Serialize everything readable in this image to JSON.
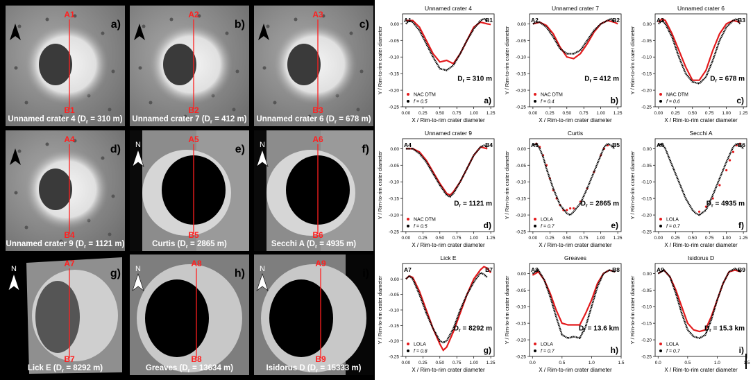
{
  "image_panels": [
    {
      "letter": "a)",
      "top": "A1",
      "bottom": "B1",
      "caption": "Unnamed crater 4 (D",
      "caption_sub": "r",
      "caption_tail": " = 310 m)",
      "style": "small",
      "north": "▲"
    },
    {
      "letter": "b)",
      "top": "A2",
      "bottom": "B2",
      "caption": "Unnamed crater 7 (D",
      "caption_sub": "r",
      "caption_tail": " = 412 m)",
      "style": "small",
      "north": "▲"
    },
    {
      "letter": "c)",
      "top": "A3",
      "bottom": "B3",
      "caption": "Unnamed crater 6 (D",
      "caption_sub": "r",
      "caption_tail": " = 678 m)",
      "style": "small",
      "north": "▲"
    },
    {
      "letter": "d)",
      "top": "A4",
      "bottom": "B4",
      "caption": "Unnamed crater 9 (D",
      "caption_sub": "r",
      "caption_tail": " = 1121 m)",
      "style": "small",
      "north": "▲"
    },
    {
      "letter": "e)",
      "top": "A5",
      "bottom": "B5",
      "caption": "Curtis (D",
      "caption_sub": "r",
      "caption_tail": " = 2865 m)",
      "style": "large",
      "north": "N"
    },
    {
      "letter": "f)",
      "top": "A6",
      "bottom": "B6",
      "caption": "Secchi A (D",
      "caption_sub": "r",
      "caption_tail": " = 4935 m)",
      "style": "large",
      "north": "N"
    },
    {
      "letter": "g)",
      "top": "A7",
      "bottom": "B7",
      "caption": "Lick E (D",
      "caption_sub": "r",
      "caption_tail": " = 8292 m)",
      "style": "lick",
      "north": "N"
    },
    {
      "letter": "h)",
      "top": "A8",
      "bottom": "B8",
      "caption": "Greaves (D",
      "caption_sub": "r",
      "caption_tail": " = 13634 m)",
      "style": "huge",
      "north": "N"
    },
    {
      "letter": "i)",
      "top": "A9",
      "bottom": "B9",
      "caption": "Isidorus D (D",
      "caption_sub": "r",
      "caption_tail": " = 15333 m)",
      "style": "huge",
      "north": "N"
    }
  ],
  "xlabel": "X / Rim-to-rim crater diameter",
  "ylabel": "Y / Rim-to-rim crater diameter",
  "colors": {
    "measured": "#e31a1c",
    "model": "#000000",
    "profile_line": "#ff2020",
    "label": "#ff2020"
  },
  "chart_data": [
    {
      "type": "line",
      "title": "Unnamed crater 4",
      "letter": "a)",
      "left_label": "A1",
      "right_label": "B1",
      "dr_text": "D",
      "dr_sub": "r",
      "dr_value": " = 310 m",
      "legend": [
        "NAC DTM",
        "f = 0.5"
      ],
      "xlim": [
        -0.05,
        1.3
      ],
      "xticks": [
        "0.00",
        "0.25",
        "0.50",
        "0.75",
        "1.00",
        "1.25"
      ],
      "ylim": [
        -0.25,
        0.03
      ],
      "yticks": [
        "0.00",
        "-0.05",
        "-0.10",
        "-0.15",
        "-0.20",
        "-0.25"
      ],
      "series": [
        {
          "name": "NAC DTM",
          "x": [
            0,
            0.1,
            0.2,
            0.3,
            0.4,
            0.5,
            0.6,
            0.7,
            0.8,
            0.9,
            1.0,
            1.1,
            1.2,
            1.25
          ],
          "y": [
            0.01,
            0.01,
            -0.01,
            -0.05,
            -0.09,
            -0.115,
            -0.11,
            -0.12,
            -0.09,
            -0.05,
            -0.01,
            0.005,
            0.0,
            -0.002
          ]
        },
        {
          "name": "f = 0.5",
          "x": [
            0,
            0.05,
            0.1,
            0.2,
            0.3,
            0.4,
            0.5,
            0.6,
            0.7,
            0.8,
            0.9,
            1.0,
            1.1,
            1.15,
            1.2
          ],
          "y": [
            0.0,
            0.01,
            0.005,
            -0.02,
            -0.06,
            -0.1,
            -0.135,
            -0.14,
            -0.125,
            -0.09,
            -0.05,
            -0.015,
            0.01,
            0.015,
            0.01
          ]
        }
      ]
    },
    {
      "type": "line",
      "title": "Unnamed crater 7",
      "letter": "b)",
      "left_label": "A2",
      "right_label": "B2",
      "dr_text": "D",
      "dr_sub": "r",
      "dr_value": " = 412 m",
      "legend": [
        "NAC DTM",
        "f = 0.4"
      ],
      "xlim": [
        -0.05,
        1.3
      ],
      "xticks": [
        "0.00",
        "0.25",
        "0.50",
        "0.75",
        "1.00",
        "1.25"
      ],
      "ylim": [
        -0.25,
        0.03
      ],
      "yticks": [
        "0.00",
        "-0.05",
        "-0.10",
        "-0.15",
        "-0.20",
        "-0.25"
      ],
      "series": [
        {
          "name": "NAC DTM",
          "x": [
            0,
            0.1,
            0.2,
            0.3,
            0.4,
            0.5,
            0.6,
            0.7,
            0.8,
            0.9,
            1.0,
            1.1,
            1.2,
            1.25
          ],
          "y": [
            0.0,
            0.005,
            -0.005,
            -0.03,
            -0.07,
            -0.1,
            -0.105,
            -0.09,
            -0.06,
            -0.025,
            0.0,
            0.01,
            0.005,
            0.0
          ]
        },
        {
          "name": "f = 0.4",
          "x": [
            0,
            0.05,
            0.1,
            0.2,
            0.3,
            0.4,
            0.5,
            0.6,
            0.7,
            0.8,
            0.9,
            1.0,
            1.1,
            1.15,
            1.2
          ],
          "y": [
            0.0,
            0.005,
            0.005,
            -0.01,
            -0.04,
            -0.075,
            -0.09,
            -0.09,
            -0.08,
            -0.05,
            -0.02,
            0.0,
            0.01,
            0.015,
            0.005
          ]
        }
      ]
    },
    {
      "type": "line",
      "title": "Unnamed crater 6",
      "letter": "c)",
      "left_label": "A3",
      "right_label": "B3",
      "dr_text": "D",
      "dr_sub": "r",
      "dr_value": " = 678 m",
      "legend": [
        "NAC DTM",
        "f = 0.6"
      ],
      "xlim": [
        -0.05,
        1.3
      ],
      "xticks": [
        "0.00",
        "0.25",
        "0.50",
        "0.75",
        "1.00",
        "1.25"
      ],
      "ylim": [
        -0.25,
        0.03
      ],
      "yticks": [
        "0.00",
        "-0.05",
        "-0.10",
        "-0.15",
        "-0.20",
        "-0.25"
      ],
      "series": [
        {
          "name": "NAC DTM",
          "x": [
            0,
            0.05,
            0.1,
            0.2,
            0.3,
            0.4,
            0.5,
            0.6,
            0.7,
            0.8,
            0.9,
            1.0,
            1.1,
            1.2
          ],
          "y": [
            0.005,
            0.015,
            0.01,
            -0.03,
            -0.08,
            -0.13,
            -0.17,
            -0.17,
            -0.14,
            -0.08,
            -0.03,
            0.0,
            0.01,
            0.005
          ]
        },
        {
          "name": "f = 0.6",
          "x": [
            0,
            0.05,
            0.1,
            0.2,
            0.3,
            0.4,
            0.5,
            0.6,
            0.7,
            0.8,
            0.9,
            1.0,
            1.1,
            1.15,
            1.2
          ],
          "y": [
            0.0,
            0.01,
            0.0,
            -0.04,
            -0.1,
            -0.15,
            -0.175,
            -0.18,
            -0.16,
            -0.11,
            -0.05,
            -0.01,
            0.01,
            0.015,
            0.0
          ]
        }
      ]
    },
    {
      "type": "line",
      "title": "Unnamed crater 9",
      "letter": "d)",
      "left_label": "A4",
      "right_label": "B4",
      "dr_text": "D",
      "dr_sub": "r",
      "dr_value": " = 1121 m",
      "legend": [
        "NAC DTM",
        "f = 0.5"
      ],
      "xlim": [
        -0.05,
        1.3
      ],
      "xticks": [
        "0.00",
        "0.25",
        "0.50",
        "0.75",
        "1.00",
        "1.25"
      ],
      "ylim": [
        -0.25,
        0.03
      ],
      "yticks": [
        "0.00",
        "-0.05",
        "-0.10",
        "-0.15",
        "-0.20",
        "-0.25"
      ],
      "series": [
        {
          "name": "NAC DTM",
          "x": [
            0,
            0.1,
            0.2,
            0.3,
            0.4,
            0.5,
            0.6,
            0.65,
            0.7,
            0.8,
            0.9,
            1.0,
            1.1,
            1.2
          ],
          "y": [
            0.0,
            0.0,
            -0.01,
            -0.035,
            -0.07,
            -0.105,
            -0.135,
            -0.14,
            -0.13,
            -0.1,
            -0.06,
            -0.02,
            0.005,
            0.0
          ]
        },
        {
          "name": "f = 0.5",
          "x": [
            0,
            0.1,
            0.2,
            0.3,
            0.4,
            0.5,
            0.6,
            0.65,
            0.7,
            0.8,
            0.9,
            1.0,
            1.1,
            1.15,
            1.2
          ],
          "y": [
            0.0,
            0.0,
            -0.015,
            -0.04,
            -0.075,
            -0.11,
            -0.14,
            -0.145,
            -0.135,
            -0.1,
            -0.06,
            -0.02,
            0.005,
            0.01,
            0.005
          ]
        }
      ]
    },
    {
      "type": "line",
      "title": "Curtis",
      "letter": "e)",
      "left_label": "A5",
      "right_label": "B5",
      "dr_text": "D",
      "dr_sub": "r",
      "dr_value": " = 2865 m",
      "legend": [
        "LOLA",
        "f = 0.7"
      ],
      "xlim": [
        -0.05,
        1.3
      ],
      "xticks": [
        "0.00",
        "0.25",
        "0.50",
        "0.75",
        "1.00",
        "1.25"
      ],
      "ylim": [
        -0.25,
        0.03
      ],
      "yticks": [
        "0.00",
        "-0.05",
        "-0.10",
        "-0.15",
        "-0.20",
        "-0.25"
      ],
      "series": [
        {
          "name": "LOLA",
          "x": [
            0.05,
            0.1,
            0.15,
            0.2,
            0.25,
            0.3,
            0.35,
            0.4,
            0.45,
            0.5,
            0.55,
            0.6,
            0.7,
            0.8,
            0.9,
            1.0,
            1.05,
            1.1
          ],
          "y": [
            0.015,
            0.005,
            -0.02,
            -0.05,
            -0.09,
            -0.125,
            -0.15,
            -0.17,
            -0.185,
            -0.185,
            -0.18,
            -0.18,
            -0.16,
            -0.12,
            -0.07,
            -0.02,
            0.0,
            0.01
          ]
        },
        {
          "name": "f = 0.7",
          "x": [
            0.0,
            0.05,
            0.1,
            0.15,
            0.2,
            0.3,
            0.4,
            0.5,
            0.55,
            0.6,
            0.7,
            0.8,
            0.9,
            1.0,
            1.05,
            1.1,
            1.15,
            1.2
          ],
          "y": [
            0.01,
            0.015,
            0.0,
            -0.025,
            -0.06,
            -0.12,
            -0.17,
            -0.195,
            -0.2,
            -0.19,
            -0.165,
            -0.12,
            -0.07,
            -0.02,
            0.005,
            0.015,
            0.01,
            0.0
          ]
        }
      ]
    },
    {
      "type": "line",
      "title": "Secchi A",
      "letter": "f)",
      "left_label": "A6",
      "right_label": "B6",
      "dr_text": "D",
      "dr_sub": "r",
      "dr_value": " = 4935 m",
      "legend": [
        "LOLA",
        "f = 0.7"
      ],
      "xlim": [
        -0.05,
        1.3
      ],
      "xticks": [
        "0.00",
        "0.25",
        "0.50",
        "0.75",
        "1.00",
        "1.25"
      ],
      "ylim": [
        -0.25,
        0.03
      ],
      "yticks": [
        "0.00",
        "-0.05",
        "-0.10",
        "-0.15",
        "-0.20",
        "-0.25"
      ],
      "series": [
        {
          "name": "LOLA",
          "x": [
            0.6,
            0.7,
            0.8,
            0.9,
            1.0,
            1.05,
            1.1,
            1.15,
            1.2
          ],
          "y": [
            -0.19,
            -0.175,
            -0.15,
            -0.11,
            -0.065,
            -0.035,
            -0.01,
            0.01,
            0.015
          ]
        },
        {
          "name": "f = 0.7",
          "x": [
            0.0,
            0.05,
            0.1,
            0.2,
            0.3,
            0.4,
            0.5,
            0.55,
            0.6,
            0.7,
            0.8,
            0.9,
            1.0,
            1.1,
            1.15,
            1.2,
            1.25
          ],
          "y": [
            0.01,
            0.015,
            0.0,
            -0.05,
            -0.1,
            -0.15,
            -0.185,
            -0.195,
            -0.2,
            -0.185,
            -0.14,
            -0.09,
            -0.04,
            0.005,
            0.015,
            0.01,
            0.0
          ]
        }
      ]
    },
    {
      "type": "line",
      "title": "Lick E",
      "letter": "g)",
      "left_label": "A7",
      "right_label": "B7",
      "dr_text": "D",
      "dr_sub": "r",
      "dr_value": " = 8292 m",
      "legend": [
        "LOLA",
        "f = 0.8"
      ],
      "xlim": [
        -0.05,
        1.3
      ],
      "xticks": [
        "0.00",
        "0.25",
        "0.50",
        "0.75",
        "1.00",
        "1.25"
      ],
      "ylim": [
        -0.25,
        0.05
      ],
      "yticks": [
        "0.00",
        "-0.05",
        "-0.10",
        "-0.15",
        "-0.20",
        "-0.25"
      ],
      "series": [
        {
          "name": "LOLA",
          "x": [
            0.0,
            0.05,
            0.1,
            0.2,
            0.3,
            0.4,
            0.5,
            0.55,
            0.6,
            0.7,
            0.8,
            0.9,
            1.0,
            1.1,
            1.15,
            1.2,
            1.25
          ],
          "y": [
            0.0,
            0.01,
            0.005,
            -0.04,
            -0.1,
            -0.16,
            -0.21,
            -0.23,
            -0.22,
            -0.17,
            -0.11,
            -0.05,
            0.0,
            0.03,
            0.04,
            0.035,
            0.02
          ]
        },
        {
          "name": "f = 0.8",
          "x": [
            0.0,
            0.05,
            0.1,
            0.2,
            0.3,
            0.4,
            0.5,
            0.55,
            0.6,
            0.7,
            0.8,
            0.9,
            1.0,
            1.05,
            1.1,
            1.15,
            1.2
          ],
          "y": [
            0.0,
            0.01,
            0.0,
            -0.05,
            -0.11,
            -0.16,
            -0.2,
            -0.205,
            -0.2,
            -0.16,
            -0.1,
            -0.05,
            -0.01,
            0.005,
            0.02,
            0.015,
            0.005
          ]
        }
      ]
    },
    {
      "type": "line",
      "title": "Greaves",
      "letter": "h)",
      "left_label": "A8",
      "right_label": "B8",
      "dr_text": "D",
      "dr_sub": "r",
      "dr_value": " = 13.6 km",
      "legend": [
        "LOLA",
        "f = 0.7"
      ],
      "xlim": [
        -0.05,
        1.5
      ],
      "xticks": [
        "0.0",
        "0.5",
        "1.0",
        "1.5"
      ],
      "ylim": [
        -0.25,
        0.03
      ],
      "yticks": [
        "0.00",
        "-0.05",
        "-0.10",
        "-0.15",
        "-0.20",
        "-0.25"
      ],
      "series": [
        {
          "name": "LOLA",
          "x": [
            0.0,
            0.1,
            0.2,
            0.3,
            0.4,
            0.5,
            0.6,
            0.7,
            0.8,
            0.9,
            1.0,
            1.1,
            1.2,
            1.3,
            1.4
          ],
          "y": [
            -0.005,
            0.005,
            -0.02,
            -0.06,
            -0.11,
            -0.15,
            -0.155,
            -0.155,
            -0.155,
            -0.12,
            -0.08,
            -0.03,
            0.0,
            0.01,
            0.005
          ]
        },
        {
          "name": "f = 0.7",
          "x": [
            0.0,
            0.1,
            0.2,
            0.3,
            0.4,
            0.5,
            0.6,
            0.7,
            0.8,
            0.9,
            1.0,
            1.1,
            1.2,
            1.3,
            1.4
          ],
          "y": [
            0.0,
            0.01,
            -0.02,
            -0.07,
            -0.13,
            -0.185,
            -0.195,
            -0.19,
            -0.195,
            -0.16,
            -0.1,
            -0.04,
            0.0,
            0.01,
            0.005
          ]
        }
      ]
    },
    {
      "type": "line",
      "title": "Isidorus D",
      "letter": "i)",
      "left_label": "A9",
      "right_label": "B9",
      "dr_text": "D",
      "dr_sub": "r",
      "dr_value": " = 15.3 km",
      "legend": [
        "LOLA",
        "f = 0.7"
      ],
      "xlim": [
        -0.05,
        1.5
      ],
      "xticks": [
        "0.0",
        "0.5",
        "1.0",
        "1.5"
      ],
      "ylim": [
        -0.25,
        0.03
      ],
      "yticks": [
        "0.00",
        "-0.05",
        "-0.10",
        "-0.15",
        "-0.20",
        "-0.25"
      ],
      "series": [
        {
          "name": "LOLA",
          "x": [
            0.0,
            0.1,
            0.2,
            0.3,
            0.4,
            0.5,
            0.6,
            0.7,
            0.8,
            0.9,
            1.0,
            1.1,
            1.2,
            1.3,
            1.4
          ],
          "y": [
            0.0,
            0.01,
            -0.01,
            -0.05,
            -0.1,
            -0.15,
            -0.17,
            -0.175,
            -0.17,
            -0.13,
            -0.08,
            -0.03,
            0.005,
            0.01,
            0.005
          ]
        },
        {
          "name": "f = 0.7",
          "x": [
            0.0,
            0.1,
            0.2,
            0.3,
            0.4,
            0.5,
            0.6,
            0.7,
            0.8,
            0.9,
            1.0,
            1.1,
            1.2,
            1.3,
            1.4
          ],
          "y": [
            0.0,
            0.01,
            -0.01,
            -0.06,
            -0.12,
            -0.17,
            -0.19,
            -0.195,
            -0.185,
            -0.14,
            -0.08,
            -0.03,
            0.005,
            0.015,
            0.005
          ]
        }
      ]
    }
  ]
}
